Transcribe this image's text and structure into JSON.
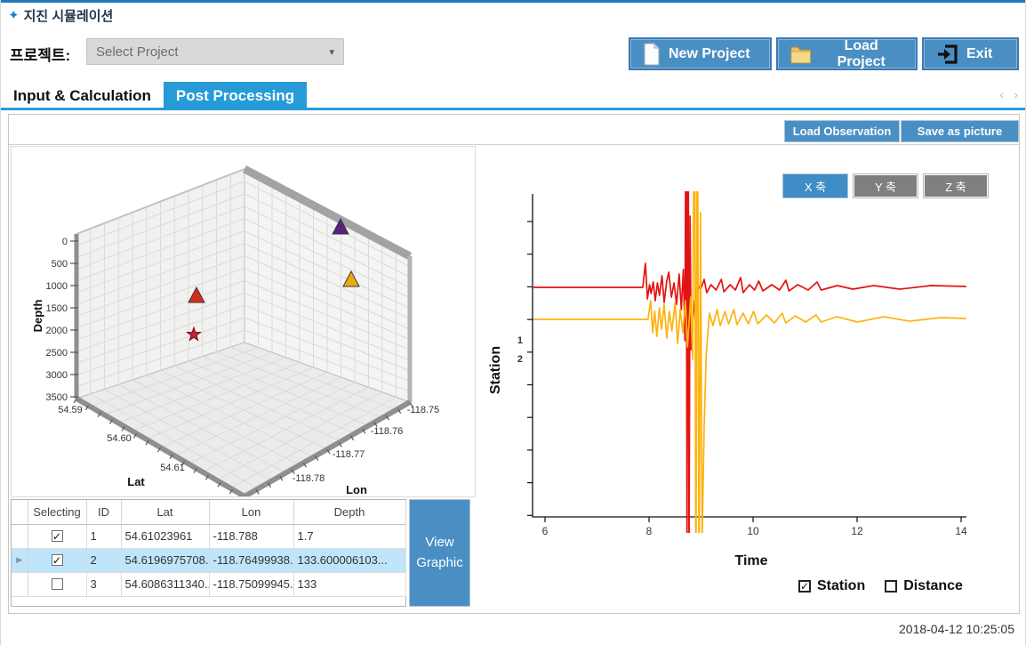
{
  "window": {
    "title": "지진 시뮬레이션",
    "timestamp": "2018-04-12 10:25:05"
  },
  "project_bar": {
    "label": "프로젝트:",
    "select_placeholder": "Select Project",
    "new_project": "New Project",
    "load_project": "Load Project",
    "exit": "Exit"
  },
  "tabs": [
    {
      "label": "Input & Calculation",
      "active": false
    },
    {
      "label": "Post Processing",
      "active": true
    }
  ],
  "toolbar": {
    "load_observation": "Load Observation",
    "save_as_picture": "Save as picture"
  },
  "axis_buttons": [
    {
      "label": "X 축",
      "active": true
    },
    {
      "label": "Y 축",
      "active": false
    },
    {
      "label": "Z 축",
      "active": false
    }
  ],
  "table": {
    "headers": [
      "Selecting",
      "ID",
      "Lat",
      "Lon",
      "Depth"
    ],
    "view_graphic_label": "View Graphic",
    "rows": [
      {
        "selecting": true,
        "id": "1",
        "lat": "54.61023961",
        "lon": "-118.788",
        "depth": "1.7",
        "highlighted": false
      },
      {
        "selecting": true,
        "id": "2",
        "lat": "54.6196975708...",
        "lon": "-118.76499938...",
        "depth": "133.600006103...",
        "highlighted": true
      },
      {
        "selecting": false,
        "id": "3",
        "lat": "54.6086311340...",
        "lon": "-118.75099945...",
        "depth": "133",
        "highlighted": false
      }
    ]
  },
  "checkboxes": {
    "station": {
      "label": "Station",
      "checked": true
    },
    "distance": {
      "label": "Distance",
      "checked": false
    }
  },
  "colors": {
    "accent_blue": "#269bd8",
    "button_blue": "#4a8fc4",
    "trace_red": "#e31313",
    "trace_yellow": "#fdb30e",
    "marker_purple": "#5a2182",
    "marker_red": "#d82a1e",
    "marker_yellow": "#f0a80c",
    "star_red": "#c42430"
  },
  "chart_data": [
    {
      "type": "scatter",
      "projection": "3d",
      "xlabel": "Lat",
      "ylabel": "Lon",
      "zlabel": "Depth",
      "depth_ticks": [
        "0",
        "500",
        "1000",
        "1500",
        "2000",
        "2500",
        "3000",
        "3500"
      ],
      "lat_ticks": [
        "54.59",
        "54.60",
        "54.61"
      ],
      "lon_ticks": [
        "-118.75",
        "-118.76",
        "-118.77",
        "-118.78"
      ],
      "depth_range": [
        0,
        3500
      ],
      "markers": [
        {
          "name": "event-star",
          "shape": "star",
          "color": "#c42430",
          "x": 205,
          "y": 211
        },
        {
          "name": "station-1-marker",
          "shape": "triangle",
          "color": "#d82a1e",
          "x": 208,
          "y": 168
        },
        {
          "name": "station-2-marker",
          "shape": "triangle",
          "color": "#f0a80c",
          "x": 382,
          "y": 150
        },
        {
          "name": "station-3-marker",
          "shape": "triangle",
          "color": "#5a2182",
          "x": 370,
          "y": 91
        }
      ]
    },
    {
      "type": "line",
      "xlabel": "Time",
      "ylabel": "Station",
      "x_ticks": [
        6,
        8,
        10,
        12,
        14
      ],
      "xlim": [
        5.74,
        14.15
      ],
      "station_tick_labels": [
        "1",
        "2"
      ],
      "series": [
        {
          "name": "station-1-trace",
          "station": 1,
          "color": "#e31313",
          "points": [
            [
              5.74,
              0
            ],
            [
              7.88,
              0
            ],
            [
              7.93,
              27
            ],
            [
              7.97,
              -13
            ],
            [
              8.01,
              3
            ],
            [
              8.04,
              -7
            ],
            [
              8.08,
              6
            ],
            [
              8.12,
              -15
            ],
            [
              8.16,
              5
            ],
            [
              8.2,
              -9
            ],
            [
              8.25,
              13
            ],
            [
              8.29,
              -17
            ],
            [
              8.34,
              7
            ],
            [
              8.38,
              17
            ],
            [
              8.43,
              -11
            ],
            [
              8.48,
              5
            ],
            [
              8.53,
              -19
            ],
            [
              8.58,
              15
            ],
            [
              8.62,
              -25
            ],
            [
              8.66,
              20
            ],
            [
              8.69,
              -60
            ],
            [
              8.715,
              320
            ],
            [
              8.73,
              -320
            ],
            [
              8.75,
              320
            ],
            [
              8.77,
              -320
            ],
            [
              8.79,
              80
            ],
            [
              8.81,
              -70
            ],
            [
              8.84,
              -38
            ],
            [
              8.88,
              -16
            ],
            [
              8.93,
              4
            ],
            [
              8.99,
              -3
            ],
            [
              9.06,
              9
            ],
            [
              9.11,
              -6
            ],
            [
              9.19,
              3
            ],
            [
              9.29,
              -3
            ],
            [
              9.39,
              9
            ],
            [
              9.44,
              -5
            ],
            [
              9.56,
              3
            ],
            [
              9.66,
              -3
            ],
            [
              9.76,
              11
            ],
            [
              9.81,
              -6
            ],
            [
              9.93,
              3
            ],
            [
              10.03,
              -3
            ],
            [
              10.11,
              7
            ],
            [
              10.19,
              -4
            ],
            [
              10.36,
              3
            ],
            [
              10.51,
              -3
            ],
            [
              10.63,
              8
            ],
            [
              10.69,
              -4
            ],
            [
              10.86,
              3
            ],
            [
              11.06,
              -3
            ],
            [
              11.23,
              6
            ],
            [
              11.31,
              -3
            ],
            [
              11.62,
              2
            ],
            [
              11.92,
              -2
            ],
            [
              12.32,
              2
            ],
            [
              12.82,
              -2
            ],
            [
              13.42,
              2
            ],
            [
              14.1,
              1
            ]
          ]
        },
        {
          "name": "station-2-trace",
          "station": 2,
          "color": "#fdb30e",
          "points": [
            [
              5.74,
              0
            ],
            [
              7.98,
              0
            ],
            [
              8.03,
              21
            ],
            [
              8.07,
              -15
            ],
            [
              8.11,
              9
            ],
            [
              8.15,
              -19
            ],
            [
              8.2,
              13
            ],
            [
              8.24,
              -11
            ],
            [
              8.29,
              17
            ],
            [
              8.34,
              -21
            ],
            [
              8.39,
              9
            ],
            [
              8.44,
              -13
            ],
            [
              8.5,
              19
            ],
            [
              8.55,
              -27
            ],
            [
              8.6,
              11
            ],
            [
              8.65,
              -15
            ],
            [
              8.7,
              21
            ],
            [
              8.74,
              -31
            ],
            [
              8.8,
              25
            ],
            [
              8.84,
              -45
            ],
            [
              8.875,
              330
            ],
            [
              8.9,
              -330
            ],
            [
              8.93,
              330
            ],
            [
              8.96,
              -330
            ],
            [
              8.99,
              120
            ],
            [
              9.02,
              -250
            ],
            [
              9.06,
              -120
            ],
            [
              9.1,
              -40
            ],
            [
              9.16,
              7
            ],
            [
              9.23,
              -7
            ],
            [
              9.31,
              11
            ],
            [
              9.37,
              -7
            ],
            [
              9.46,
              9
            ],
            [
              9.53,
              -5
            ],
            [
              9.63,
              11
            ],
            [
              9.69,
              -6
            ],
            [
              9.81,
              7
            ],
            [
              9.91,
              -5
            ],
            [
              10.01,
              9
            ],
            [
              10.09,
              -5
            ],
            [
              10.26,
              5
            ],
            [
              10.41,
              -4
            ],
            [
              10.56,
              7
            ],
            [
              10.63,
              -4
            ],
            [
              10.81,
              4
            ],
            [
              11.01,
              -3
            ],
            [
              11.21,
              5
            ],
            [
              11.31,
              -3
            ],
            [
              11.61,
              3
            ],
            [
              12.01,
              -3
            ],
            [
              12.51,
              3
            ],
            [
              13.01,
              -2
            ],
            [
              13.61,
              2
            ],
            [
              14.1,
              1
            ]
          ]
        }
      ]
    }
  ]
}
